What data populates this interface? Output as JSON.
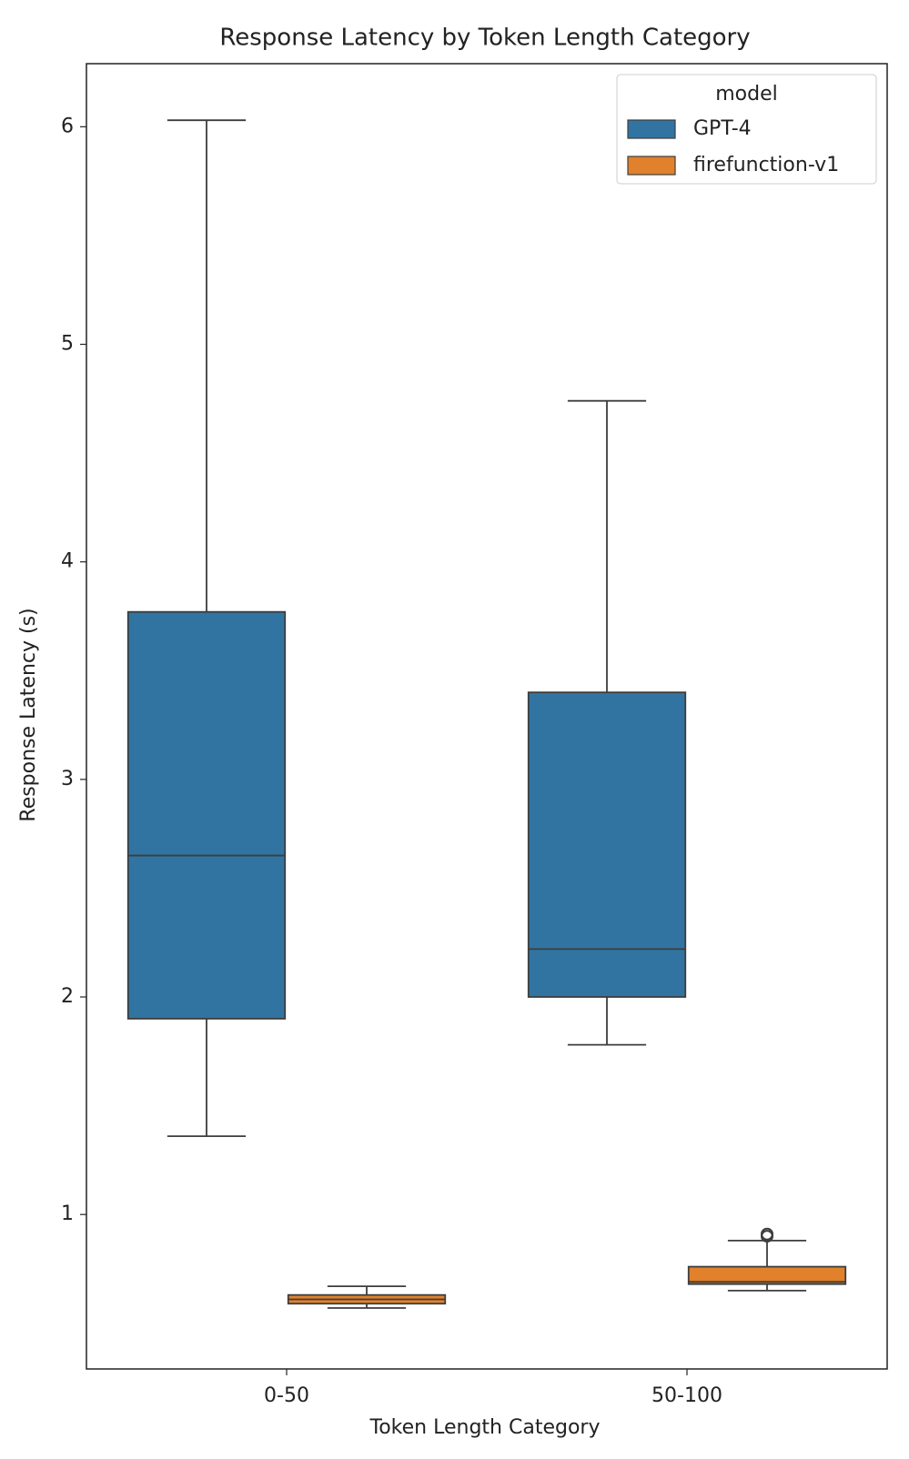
{
  "chart_data": {
    "type": "box",
    "title": "Response Latency by Token Length Category",
    "x_label": "Token Length Category",
    "y_label": "Response Latency (s)",
    "categories": [
      "0-50",
      "50-100"
    ],
    "legend_title": "model",
    "legend_position": "upper right",
    "ylim": [
      0.29,
      6.29
    ],
    "yticks": [
      1,
      2,
      3,
      4,
      5,
      6
    ],
    "series": [
      {
        "name": "GPT-4",
        "color": "#3274a1",
        "boxes": [
          {
            "whislo": 1.36,
            "q1": 1.9,
            "med": 2.65,
            "q3": 3.77,
            "whishi": 6.03,
            "fliers": []
          },
          {
            "whislo": 1.78,
            "q1": 2.0,
            "med": 2.22,
            "q3": 3.4,
            "whishi": 4.74,
            "fliers": []
          }
        ]
      },
      {
        "name": "firefunction-v1",
        "color": "#e1812c",
        "boxes": [
          {
            "whislo": 0.57,
            "q1": 0.59,
            "med": 0.61,
            "q3": 0.63,
            "whishi": 0.67,
            "fliers": []
          },
          {
            "whislo": 0.65,
            "q1": 0.68,
            "med": 0.69,
            "q3": 0.76,
            "whishi": 0.88,
            "fliers": [
              0.9,
              0.91
            ]
          }
        ]
      }
    ]
  }
}
